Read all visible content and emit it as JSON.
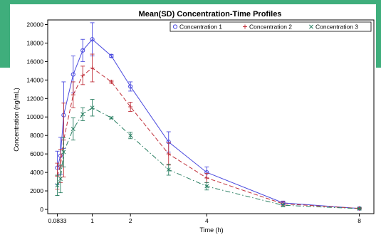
{
  "colors": {
    "background_band": "#3fae7c",
    "series": [
      "#4a4adf",
      "#c0303a",
      "#2a7f62"
    ]
  },
  "chart_data": {
    "type": "line",
    "title": "Mean(SD) Concentration-Time Profiles",
    "xlabel": "Time (h)",
    "ylabel": "Concentration (ng/mL)",
    "xlim": [
      0,
      8.1
    ],
    "ylim": [
      0,
      20500
    ],
    "xticks": [
      {
        "value": 0.0833,
        "label": "0.0833"
      },
      {
        "value": 1,
        "label": "1"
      },
      {
        "value": 2,
        "label": "2"
      },
      {
        "value": 4,
        "label": "4"
      },
      {
        "value": 8,
        "label": "8"
      }
    ],
    "yticks": [
      {
        "value": 0,
        "label": "0"
      },
      {
        "value": 2000,
        "label": "2000"
      },
      {
        "value": 4000,
        "label": "4000"
      },
      {
        "value": 6000,
        "label": "6000"
      },
      {
        "value": 8000,
        "label": "8000"
      },
      {
        "value": 10000,
        "label": "10000"
      },
      {
        "value": 12000,
        "label": "12000"
      },
      {
        "value": 14000,
        "label": "14000"
      },
      {
        "value": 16000,
        "label": "16000"
      },
      {
        "value": 18000,
        "label": "18000"
      },
      {
        "value": 20000,
        "label": "20000"
      }
    ],
    "x": [
      0.0833,
      0.167,
      0.25,
      0.5,
      0.75,
      1,
      1.5,
      2,
      3,
      4,
      6,
      8
    ],
    "legend_position": "top-right",
    "series": [
      {
        "name": "Concentration 1",
        "marker": "circle",
        "dash": "solid",
        "values": [
          4500,
          5800,
          10200,
          14600,
          17200,
          18400,
          16600,
          13300,
          7300,
          4000,
          700,
          100
        ],
        "sd": [
          1800,
          2000,
          3600,
          2000,
          1200,
          1800,
          150,
          500,
          1100,
          600,
          200,
          100
        ]
      },
      {
        "name": "Concentration 2",
        "marker": "plus",
        "dash": "dashed",
        "values": [
          3600,
          4700,
          7500,
          12400,
          14500,
          15300,
          13800,
          11100,
          6000,
          3400,
          600,
          100
        ],
        "sd": [
          1400,
          1800,
          4000,
          1400,
          1000,
          1500,
          150,
          500,
          1200,
          500,
          200,
          100
        ]
      },
      {
        "name": "Concentration 3",
        "marker": "x",
        "dash": "dashdot",
        "values": [
          2600,
          3300,
          6200,
          8700,
          10300,
          11000,
          9900,
          8000,
          4300,
          2500,
          450,
          80
        ],
        "sd": [
          1100,
          1500,
          1600,
          1200,
          700,
          900,
          100,
          350,
          600,
          400,
          150,
          60
        ]
      }
    ]
  }
}
